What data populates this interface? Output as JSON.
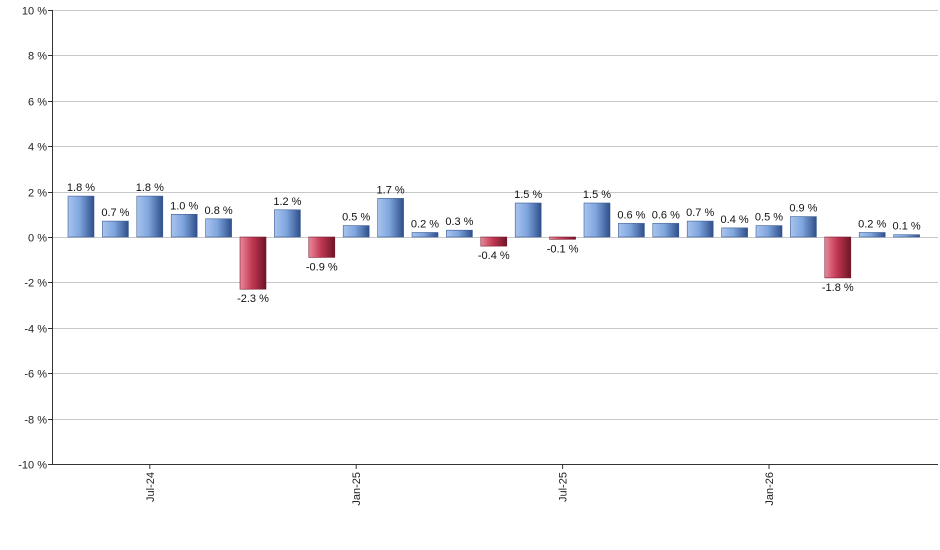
{
  "chart_data": {
    "type": "bar",
    "title": "",
    "xlabel": "",
    "ylabel": "",
    "ylim": [
      -10,
      10
    ],
    "y_ticks": [
      10,
      8,
      6,
      4,
      2,
      0,
      -2,
      -4,
      -6,
      -8,
      -10
    ],
    "y_tick_labels": [
      "10 %",
      "8 %",
      "6 %",
      "4 %",
      "2 %",
      "0 %",
      "-2 %",
      "-4 %",
      "-6 %",
      "-8 %",
      "-10 %"
    ],
    "x_tick_labels": [
      {
        "label": "Jul-24",
        "index": 2
      },
      {
        "label": "Jan-25",
        "index": 8
      },
      {
        "label": "Jul-25",
        "index": 14
      },
      {
        "label": "Jan-26",
        "index": 20
      }
    ],
    "grid": true,
    "positive_color": "#7fa6de",
    "negative_color": "#c43a55",
    "values": [
      1.8,
      0.7,
      1.8,
      1.0,
      0.8,
      -2.3,
      1.2,
      -0.9,
      0.5,
      1.7,
      0.2,
      0.3,
      -0.4,
      1.5,
      -0.1,
      1.5,
      0.6,
      0.6,
      0.7,
      0.4,
      0.5,
      0.9,
      -1.8,
      0.2,
      0.1
    ],
    "labels": [
      "1.8 %",
      "0.7 %",
      "1.8 %",
      "1.0 %",
      "0.8 %",
      "-2.3 %",
      "1.2 %",
      "-0.9 %",
      "0.5 %",
      "1.7 %",
      "0.2 %",
      "0.3 %",
      "-0.4 %",
      "1.5 %",
      "-0.1 %",
      "1.5 %",
      "0.6 %",
      "0.6 %",
      "0.7 %",
      "0.4 %",
      "0.5 %",
      "0.9 %",
      "-1.8 %",
      "0.2 %",
      "0.1 %"
    ]
  }
}
